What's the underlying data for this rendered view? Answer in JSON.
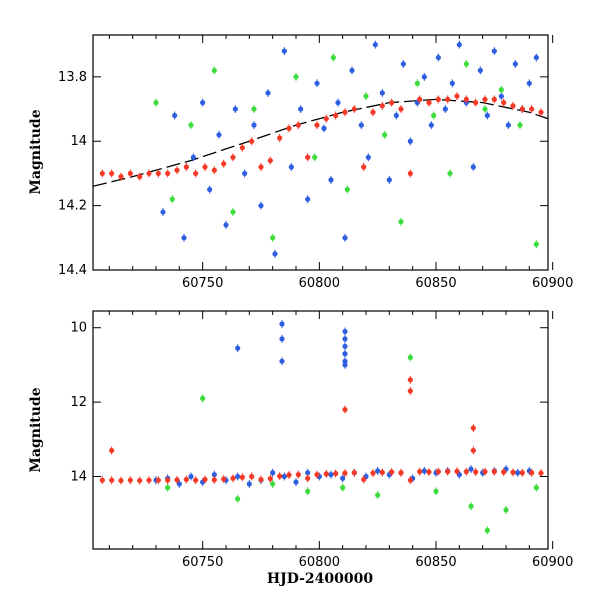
{
  "chart_data": [
    {
      "type": "scatter",
      "panel": "top",
      "title": "",
      "xlabel": "",
      "ylabel": "Magnitude",
      "xlim": [
        60703,
        60898
      ],
      "ylim": [
        14.4,
        13.67
      ],
      "y_inverted": true,
      "grid": false,
      "legend": "none",
      "x_ticks": [
        60750,
        60800,
        60850,
        60900
      ],
      "x_tick_labels": [
        "60750",
        "60800",
        "60850",
        "60900"
      ],
      "y_ticks": [
        13.8,
        14.0,
        14.2,
        14.4
      ],
      "y_tick_labels": [
        "13.8",
        "14",
        "14.2",
        "14.4"
      ],
      "trend": {
        "type": "line",
        "color": "#000000",
        "dashed": true,
        "x": [
          60703,
          60720,
          60745,
          60770,
          60790,
          60810,
          60830,
          60850,
          60870,
          60890,
          60898
        ],
        "y": [
          14.14,
          14.11,
          14.06,
          14.0,
          13.95,
          13.91,
          13.88,
          13.87,
          13.88,
          13.91,
          13.93
        ]
      },
      "series": [
        {
          "color": "#2e5fe0",
          "x": [
            60733,
            60738,
            60742,
            60746,
            60750,
            60753,
            60757,
            60760,
            60764,
            60768,
            60772,
            60775,
            60778,
            60781,
            60785,
            60788,
            60792,
            60795,
            60799,
            60802,
            60805,
            60808,
            60811,
            60814,
            60818,
            60821,
            60824,
            60827,
            60830,
            60833,
            60836,
            60839,
            60842,
            60845,
            60848,
            60851,
            60854,
            60857,
            60860,
            60863,
            60866,
            60869,
            60872,
            60875,
            60878,
            60881,
            60884,
            60887,
            60890,
            60893
          ],
          "y": [
            14.22,
            13.92,
            14.3,
            14.05,
            13.88,
            14.15,
            13.98,
            14.26,
            13.9,
            14.1,
            13.95,
            14.2,
            13.85,
            14.35,
            13.72,
            14.08,
            13.9,
            14.18,
            13.82,
            13.96,
            14.12,
            13.88,
            14.3,
            13.78,
            13.95,
            14.05,
            13.7,
            13.85,
            14.12,
            13.92,
            13.76,
            14.0,
            13.88,
            13.8,
            13.95,
            13.74,
            13.9,
            13.82,
            13.7,
            13.88,
            14.08,
            13.78,
            13.92,
            13.72,
            13.86,
            13.95,
            13.76,
            13.9,
            13.82,
            13.74
          ]
        },
        {
          "color": "#3bdc3b",
          "x": [
            60730,
            60737,
            60745,
            60755,
            60763,
            60772,
            60780,
            60790,
            60798,
            60806,
            60812,
            60820,
            60828,
            60835,
            60842,
            60849,
            60856,
            60863,
            60871,
            60878,
            60886,
            60893
          ],
          "y": [
            13.88,
            14.18,
            13.95,
            13.78,
            14.22,
            13.9,
            14.3,
            13.8,
            14.05,
            13.74,
            14.15,
            13.86,
            13.98,
            14.25,
            13.82,
            13.92,
            14.1,
            13.76,
            13.9,
            13.84,
            13.95,
            14.32
          ]
        },
        {
          "color": "#f43a27",
          "x": [
            60707,
            60711,
            60715,
            60719,
            60723,
            60727,
            60731,
            60735,
            60739,
            60743,
            60747,
            60751,
            60755,
            60759,
            60763,
            60767,
            60771,
            60775,
            60779,
            60783,
            60787,
            60791,
            60795,
            60799,
            60803,
            60807,
            60811,
            60815,
            60819,
            60823,
            60827,
            60831,
            60835,
            60839,
            60843,
            60847,
            60851,
            60855,
            60859,
            60863,
            60867,
            60871,
            60875,
            60879,
            60883,
            60887,
            60891,
            60895
          ],
          "y": [
            14.1,
            14.1,
            14.11,
            14.1,
            14.11,
            14.1,
            14.1,
            14.1,
            14.09,
            14.08,
            14.1,
            14.08,
            14.09,
            14.07,
            14.05,
            14.02,
            14.0,
            14.08,
            14.06,
            13.99,
            13.96,
            13.95,
            14.05,
            13.95,
            13.93,
            13.92,
            13.91,
            13.9,
            14.08,
            13.91,
            13.89,
            13.88,
            13.9,
            14.1,
            13.87,
            13.88,
            13.87,
            13.87,
            13.86,
            13.87,
            13.88,
            13.87,
            13.87,
            13.88,
            13.89,
            13.9,
            13.9,
            13.91
          ]
        }
      ]
    },
    {
      "type": "scatter",
      "panel": "bottom",
      "title": "",
      "xlabel": "HJD-2400000",
      "ylabel": "Magnitude",
      "xlim": [
        60703,
        60898
      ],
      "ylim": [
        15.95,
        9.55
      ],
      "y_inverted": true,
      "grid": false,
      "legend": "none",
      "x_ticks": [
        60750,
        60800,
        60850,
        60900
      ],
      "x_tick_labels": [
        "60750",
        "60800",
        "60850",
        "60900"
      ],
      "y_ticks": [
        10,
        12,
        14
      ],
      "y_tick_labels": [
        "10",
        "12",
        "14"
      ],
      "series": [
        {
          "color": "#2e5fe0",
          "x": [
            60730,
            60735,
            60740,
            60745,
            60750,
            60755,
            60760,
            60765,
            60770,
            60775,
            60780,
            60785,
            60790,
            60795,
            60800,
            60805,
            60810,
            60815,
            60820,
            60825,
            60830,
            60835,
            60840,
            60845,
            60850,
            60855,
            60860,
            60865,
            60870,
            60875,
            60880,
            60885,
            60890,
            60765,
            60784,
            60784,
            60784,
            60811,
            60811,
            60811,
            60811,
            60811,
            60811
          ],
          "y": [
            14.1,
            14.05,
            14.2,
            14.0,
            14.15,
            13.95,
            14.1,
            14.0,
            14.2,
            14.1,
            13.9,
            14.0,
            14.15,
            13.9,
            14.0,
            13.95,
            14.05,
            13.9,
            14.0,
            13.85,
            13.95,
            13.9,
            14.05,
            13.85,
            13.9,
            13.85,
            13.95,
            13.8,
            13.9,
            13.85,
            13.8,
            13.9,
            13.85,
            10.55,
            9.9,
            10.3,
            10.9,
            10.1,
            10.3,
            10.5,
            10.7,
            10.9,
            11.0
          ]
        },
        {
          "color": "#3bdc3b",
          "x": [
            60735,
            60750,
            60765,
            60780,
            60795,
            60810,
            60825,
            60839,
            60850,
            60865,
            60872,
            60880,
            60893
          ],
          "y": [
            14.3,
            11.9,
            14.6,
            14.2,
            14.4,
            14.3,
            14.5,
            10.8,
            14.4,
            14.8,
            15.45,
            14.9,
            14.3
          ]
        },
        {
          "color": "#f43a27",
          "x": [
            60707,
            60711,
            60715,
            60719,
            60723,
            60727,
            60731,
            60735,
            60739,
            60743,
            60747,
            60751,
            60755,
            60759,
            60763,
            60767,
            60771,
            60775,
            60779,
            60783,
            60787,
            60791,
            60795,
            60799,
            60803,
            60807,
            60811,
            60815,
            60819,
            60823,
            60827,
            60831,
            60835,
            60839,
            60843,
            60847,
            60851,
            60855,
            60859,
            60863,
            60867,
            60871,
            60875,
            60879,
            60883,
            60887,
            60891,
            60895,
            60711,
            60811,
            60839,
            60839,
            60866,
            60866
          ],
          "y": [
            14.1,
            14.1,
            14.11,
            14.1,
            14.11,
            14.1,
            14.1,
            14.1,
            14.09,
            14.08,
            14.1,
            14.08,
            14.09,
            14.07,
            14.05,
            14.02,
            14.0,
            14.08,
            14.06,
            13.99,
            13.96,
            13.95,
            14.05,
            13.95,
            13.93,
            13.92,
            13.91,
            13.9,
            14.08,
            13.91,
            13.89,
            13.88,
            13.9,
            14.1,
            13.87,
            13.88,
            13.87,
            13.87,
            13.86,
            13.87,
            13.88,
            13.87,
            13.87,
            13.88,
            13.89,
            13.9,
            13.9,
            13.91,
            13.3,
            12.2,
            11.4,
            11.7,
            12.7,
            13.3
          ]
        }
      ]
    }
  ]
}
